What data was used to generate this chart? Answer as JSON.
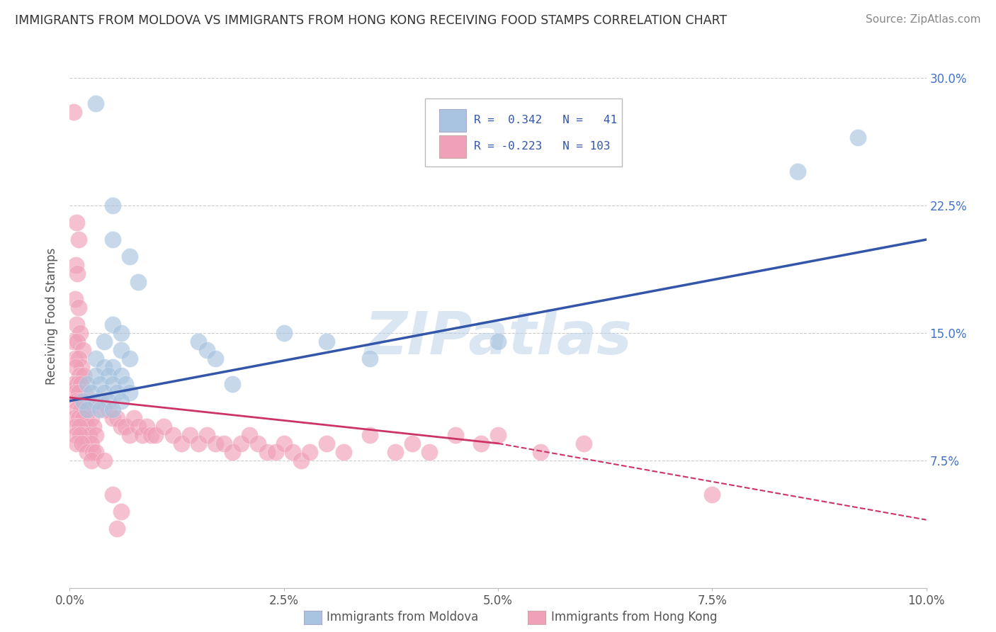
{
  "title": "IMMIGRANTS FROM MOLDOVA VS IMMIGRANTS FROM HONG KONG RECEIVING FOOD STAMPS CORRELATION CHART",
  "source": "Source: ZipAtlas.com",
  "ylabel": "Receiving Food Stamps",
  "xlim": [
    0.0,
    10.0
  ],
  "ylim": [
    0.0,
    32.0
  ],
  "yticks": [
    0.0,
    7.5,
    15.0,
    22.5,
    30.0
  ],
  "ytick_labels": [
    "",
    "7.5%",
    "15.0%",
    "22.5%",
    "30.0%"
  ],
  "xticks": [
    0.0,
    2.5,
    5.0,
    7.5,
    10.0
  ],
  "xtick_labels": [
    "0.0%",
    "2.5%",
    "5.0%",
    "7.5%",
    "10.0%"
  ],
  "color_moldova": "#a8c4e0",
  "color_hongkong": "#f0a0b8",
  "line_color_moldova": "#3355aa",
  "line_color_hongkong": "#cc3366",
  "watermark": "ZIPatlas",
  "watermark_color": "#b8cfe8",
  "background_color": "#ffffff",
  "moldova_points": [
    [
      0.3,
      28.5
    ],
    [
      0.5,
      22.5
    ],
    [
      0.5,
      20.5
    ],
    [
      0.7,
      19.5
    ],
    [
      0.8,
      18.0
    ],
    [
      0.5,
      15.5
    ],
    [
      0.6,
      15.0
    ],
    [
      0.4,
      14.5
    ],
    [
      0.6,
      14.0
    ],
    [
      0.3,
      13.5
    ],
    [
      0.7,
      13.5
    ],
    [
      0.4,
      13.0
    ],
    [
      0.5,
      13.0
    ],
    [
      0.3,
      12.5
    ],
    [
      0.45,
      12.5
    ],
    [
      0.6,
      12.5
    ],
    [
      0.2,
      12.0
    ],
    [
      0.35,
      12.0
    ],
    [
      0.5,
      12.0
    ],
    [
      0.65,
      12.0
    ],
    [
      0.25,
      11.5
    ],
    [
      0.4,
      11.5
    ],
    [
      0.55,
      11.5
    ],
    [
      0.7,
      11.5
    ],
    [
      0.15,
      11.0
    ],
    [
      0.3,
      11.0
    ],
    [
      0.45,
      11.0
    ],
    [
      0.6,
      11.0
    ],
    [
      0.2,
      10.5
    ],
    [
      0.35,
      10.5
    ],
    [
      0.5,
      10.5
    ],
    [
      1.5,
      14.5
    ],
    [
      1.6,
      14.0
    ],
    [
      1.7,
      13.5
    ],
    [
      1.9,
      12.0
    ],
    [
      2.5,
      15.0
    ],
    [
      3.0,
      14.5
    ],
    [
      3.5,
      13.5
    ],
    [
      5.0,
      14.5
    ],
    [
      8.5,
      24.5
    ],
    [
      9.2,
      26.5
    ]
  ],
  "hongkong_points": [
    [
      0.05,
      28.0
    ],
    [
      0.08,
      21.5
    ],
    [
      0.1,
      20.5
    ],
    [
      0.07,
      19.0
    ],
    [
      0.09,
      18.5
    ],
    [
      0.06,
      17.0
    ],
    [
      0.1,
      16.5
    ],
    [
      0.08,
      15.5
    ],
    [
      0.12,
      15.0
    ],
    [
      0.05,
      14.5
    ],
    [
      0.09,
      14.5
    ],
    [
      0.15,
      14.0
    ],
    [
      0.06,
      13.5
    ],
    [
      0.1,
      13.5
    ],
    [
      0.14,
      13.0
    ],
    [
      0.07,
      13.0
    ],
    [
      0.11,
      12.5
    ],
    [
      0.16,
      12.5
    ],
    [
      0.05,
      12.0
    ],
    [
      0.09,
      12.0
    ],
    [
      0.13,
      12.0
    ],
    [
      0.18,
      11.5
    ],
    [
      0.06,
      11.5
    ],
    [
      0.1,
      11.5
    ],
    [
      0.14,
      11.0
    ],
    [
      0.2,
      11.0
    ],
    [
      0.07,
      11.0
    ],
    [
      0.12,
      11.0
    ],
    [
      0.17,
      10.5
    ],
    [
      0.22,
      10.5
    ],
    [
      0.08,
      10.5
    ],
    [
      0.13,
      10.5
    ],
    [
      0.19,
      10.0
    ],
    [
      0.25,
      10.0
    ],
    [
      0.05,
      10.0
    ],
    [
      0.1,
      10.0
    ],
    [
      0.15,
      10.0
    ],
    [
      0.21,
      9.5
    ],
    [
      0.28,
      9.5
    ],
    [
      0.06,
      9.5
    ],
    [
      0.11,
      9.5
    ],
    [
      0.16,
      9.0
    ],
    [
      0.23,
      9.0
    ],
    [
      0.3,
      9.0
    ],
    [
      0.07,
      9.0
    ],
    [
      0.12,
      9.0
    ],
    [
      0.18,
      8.5
    ],
    [
      0.25,
      8.5
    ],
    [
      0.08,
      8.5
    ],
    [
      0.14,
      8.5
    ],
    [
      0.2,
      8.0
    ],
    [
      0.27,
      8.0
    ],
    [
      0.35,
      11.0
    ],
    [
      0.4,
      10.5
    ],
    [
      0.45,
      10.5
    ],
    [
      0.5,
      10.0
    ],
    [
      0.55,
      10.0
    ],
    [
      0.6,
      9.5
    ],
    [
      0.65,
      9.5
    ],
    [
      0.7,
      9.0
    ],
    [
      0.75,
      10.0
    ],
    [
      0.8,
      9.5
    ],
    [
      0.85,
      9.0
    ],
    [
      0.9,
      9.5
    ],
    [
      0.95,
      9.0
    ],
    [
      1.0,
      9.0
    ],
    [
      1.1,
      9.5
    ],
    [
      1.2,
      9.0
    ],
    [
      1.3,
      8.5
    ],
    [
      1.4,
      9.0
    ],
    [
      1.5,
      8.5
    ],
    [
      1.6,
      9.0
    ],
    [
      1.7,
      8.5
    ],
    [
      1.8,
      8.5
    ],
    [
      1.9,
      8.0
    ],
    [
      2.0,
      8.5
    ],
    [
      2.1,
      9.0
    ],
    [
      2.2,
      8.5
    ],
    [
      2.3,
      8.0
    ],
    [
      2.4,
      8.0
    ],
    [
      2.5,
      8.5
    ],
    [
      2.6,
      8.0
    ],
    [
      2.7,
      7.5
    ],
    [
      2.8,
      8.0
    ],
    [
      3.0,
      8.5
    ],
    [
      3.2,
      8.0
    ],
    [
      3.5,
      9.0
    ],
    [
      3.8,
      8.0
    ],
    [
      4.0,
      8.5
    ],
    [
      4.2,
      8.0
    ],
    [
      4.5,
      9.0
    ],
    [
      4.8,
      8.5
    ],
    [
      5.0,
      9.0
    ],
    [
      5.5,
      8.0
    ],
    [
      6.0,
      8.5
    ],
    [
      7.5,
      5.5
    ],
    [
      0.3,
      8.0
    ],
    [
      0.25,
      7.5
    ],
    [
      0.4,
      7.5
    ],
    [
      0.5,
      5.5
    ],
    [
      0.6,
      4.5
    ],
    [
      0.55,
      3.5
    ]
  ],
  "moldova_trend": [
    0.0,
    10.0,
    11.0,
    20.5
  ],
  "hongkong_trend_solid": [
    0.0,
    5.0,
    11.2,
    8.5
  ],
  "hongkong_trend_dash": [
    5.0,
    10.0,
    8.5,
    4.0
  ]
}
